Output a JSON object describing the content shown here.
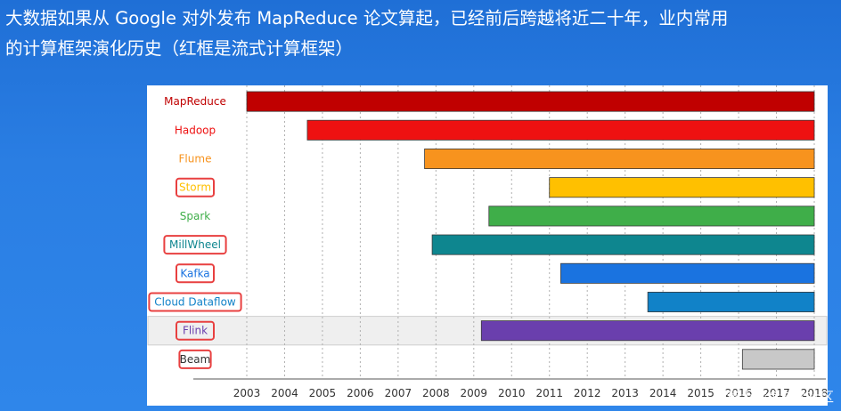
{
  "slide": {
    "title_line1": "大数据如果从 Google 对外发布 MapReduce 论文算起，已经前后跨越将近二十年，业内常用",
    "title_line2": "的计算框架演化历史（红框是流式计算框架）",
    "watermark": "@稀土掘金技术社区"
  },
  "chart_data": {
    "type": "bar",
    "subtype": "gantt",
    "orientation": "horizontal",
    "categories": [
      "MapReduce",
      "Hadoop",
      "Flume",
      "Storm",
      "Spark",
      "MillWheel",
      "Kafka",
      "Cloud Dataflow",
      "Flink",
      "Beam"
    ],
    "starts": [
      2003.0,
      2004.6,
      2007.7,
      2011.0,
      2009.4,
      2007.9,
      2011.3,
      2013.6,
      2009.2,
      2016.1
    ],
    "ends": [
      2018.0,
      2018.0,
      2018.0,
      2018.0,
      2018.0,
      2018.0,
      2018.0,
      2018.0,
      2018.0,
      2018.0
    ],
    "colors": [
      "#c00000",
      "#ee1111",
      "#f7931e",
      "#ffc000",
      "#3fae49",
      "#0e868f",
      "#1a73e0",
      "#1182c8",
      "#6a3fad",
      "#c8c8c8"
    ],
    "label_colors": [
      "#c00000",
      "#ee1111",
      "#f7931e",
      "#ffc000",
      "#3fae49",
      "#0e868f",
      "#1a73e0",
      "#1182c8",
      "#6a3fad",
      "#333333"
    ],
    "streaming": [
      "Storm",
      "MillWheel",
      "Kafka",
      "Cloud Dataflow",
      "Flink",
      "Beam"
    ],
    "highlight_color": "#e84040",
    "x_ticks": [
      "2003",
      "2004",
      "2005",
      "2006",
      "2007",
      "2008",
      "2009",
      "2010",
      "2011",
      "2012",
      "2013",
      "2014",
      "2015",
      "2016",
      "2017",
      "2018"
    ],
    "xlim": [
      2003,
      2018
    ],
    "grid": "vertical-dotted",
    "xlabel": "",
    "ylabel": ""
  }
}
